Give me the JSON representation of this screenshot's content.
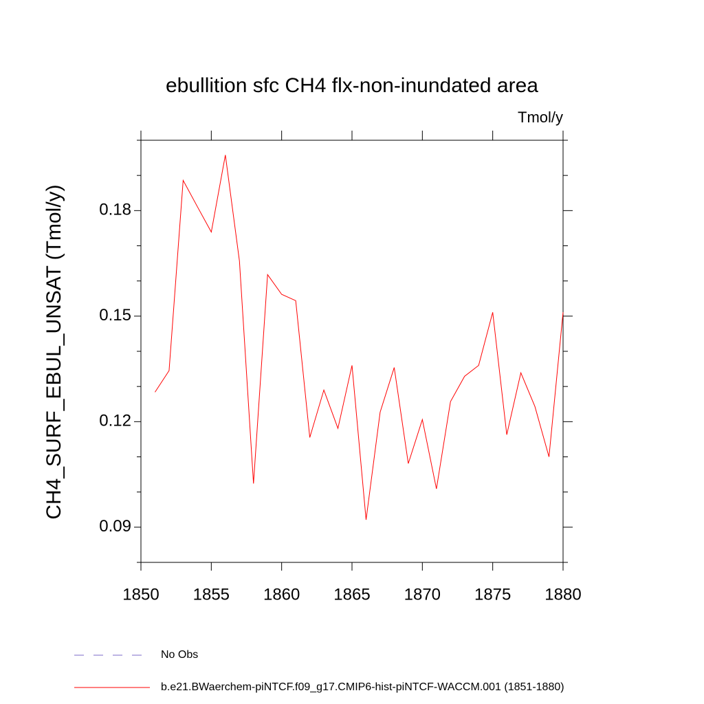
{
  "chart_data": {
    "type": "line",
    "title": "ebullition sfc CH4 flx-non-inundated area",
    "units_label": "Tmol/y",
    "y_label": "CH4_SURF_EBUL_UNSAT  (Tmol/y)",
    "x": [
      1851,
      1852,
      1853,
      1854,
      1855,
      1856,
      1857,
      1858,
      1859,
      1860,
      1861,
      1862,
      1863,
      1864,
      1865,
      1866,
      1867,
      1868,
      1869,
      1870,
      1871,
      1872,
      1873,
      1874,
      1875,
      1876,
      1877,
      1878,
      1879,
      1880
    ],
    "series": [
      {
        "name": "No Obs",
        "color": "#7b68c8",
        "dashed": true,
        "values": [
          null,
          null,
          null,
          null,
          null,
          null,
          null,
          null,
          null,
          null,
          null,
          null,
          null,
          null,
          null,
          null,
          null,
          null,
          null,
          null,
          null,
          null,
          null,
          null,
          null,
          null,
          null,
          null,
          null,
          null
        ]
      },
      {
        "name": "b.e21.BWaerchem-piNTCF.f09_g17.CMIP6-hist-piNTCF-WACCM.001 (1851-1880)",
        "color": "#ff0000",
        "dashed": false,
        "values": [
          0.1284,
          0.1345,
          0.1886,
          0.1812,
          0.1739,
          0.1958,
          0.1657,
          0.1024,
          0.1618,
          0.1562,
          0.1544,
          0.1155,
          0.129,
          0.1181,
          0.136,
          0.0921,
          0.1227,
          0.1354,
          0.1081,
          0.1206,
          0.1009,
          0.1257,
          0.1329,
          0.136,
          0.1511,
          0.1163,
          0.1339,
          0.1243,
          0.11,
          0.1511
        ]
      }
    ],
    "xlim": [
      1850,
      1880
    ],
    "xticks": [
      1850,
      1855,
      1860,
      1865,
      1870,
      1875,
      1880
    ],
    "ylim": [
      0.08,
      0.2
    ],
    "yticks": [
      0.09,
      {
        "value": 0.12,
        "label": "0.12"
      },
      0.15,
      0.18
    ],
    "yminorticks": [
      0.08,
      0.1,
      0.11,
      0.13,
      0.14,
      0.16,
      0.17,
      0.19,
      0.2
    ]
  }
}
